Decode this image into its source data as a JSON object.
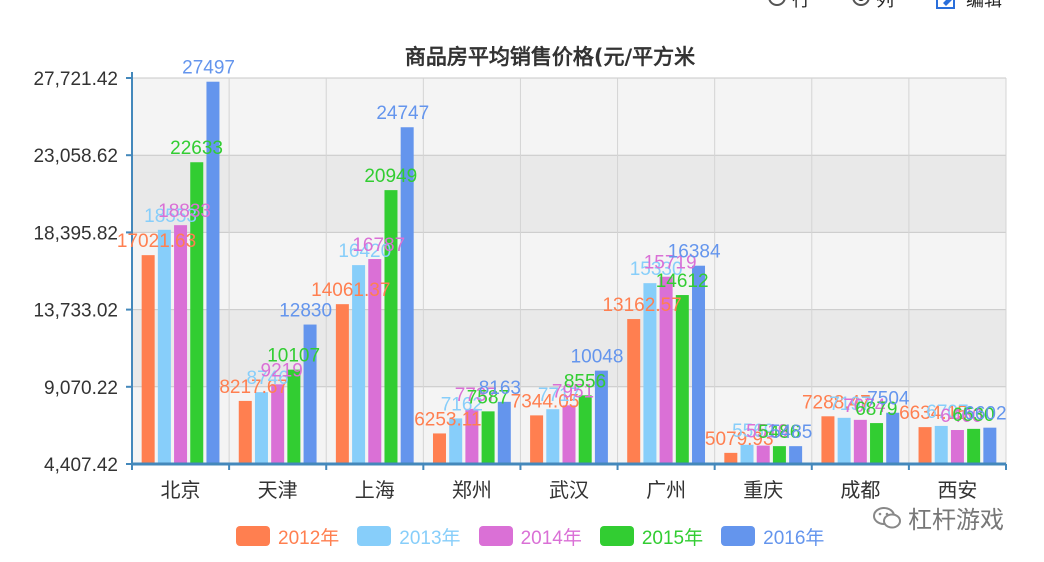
{
  "toolbar": {
    "row_label": "行",
    "col_label": "列",
    "edit_label": "编辑",
    "selected": "列"
  },
  "watermark": {
    "text": "杠杆游戏"
  },
  "chart_data": {
    "type": "bar",
    "title": "商品房平均销售价格(元/平方米",
    "categories": [
      "北京",
      "天津",
      "上海",
      "郑州",
      "武汉",
      "广州",
      "重庆",
      "成都",
      "西安"
    ],
    "yticks": [
      "4,407.42",
      "9,070.22",
      "13,733.02",
      "18,395.82",
      "23,058.62",
      "27,721.42"
    ],
    "ylim": [
      4407.42,
      27721.42
    ],
    "grid": true,
    "legend_position": "bottom",
    "series": [
      {
        "name": "2012年",
        "color": "#ff7f50",
        "values": [
          17021.63,
          8217.67,
          14061.37,
          6253.11,
          7344.05,
          13162.57,
          5079.93,
          7288.47,
          6634.15
        ],
        "labels": [
          "17021.63",
          "8217.67",
          "14061.37",
          "6253.11",
          "7344.05",
          "13162.57",
          "5079.93",
          "7288.47",
          "6634.15"
        ]
      },
      {
        "name": "2013年",
        "color": "#87cefa",
        "values": [
          18553,
          8746,
          16420,
          7162,
          7717,
          15330,
          5569,
          7197,
          6707
        ],
        "labels": [
          "18553",
          "8746",
          "16420",
          "7162",
          "7717",
          "15330",
          "5569",
          "7197",
          "6707"
        ]
      },
      {
        "name": "2014年",
        "color": "#da70d6",
        "values": [
          18833,
          9219,
          16787,
          7737,
          7951,
          15719,
          5519,
          7074,
          6460
        ],
        "labels": [
          "18833",
          "9219",
          "16787",
          "7737",
          "7951",
          "15719",
          "5519",
          "7074",
          "6460"
        ]
      },
      {
        "name": "2015年",
        "color": "#32cd32",
        "values": [
          22633,
          10107,
          20949,
          7587,
          8556,
          14612,
          5486,
          6879,
          6530
        ],
        "labels": [
          "22633",
          "10107",
          "20949",
          "7587",
          "8556",
          "14612",
          "5486",
          "6879",
          "6530"
        ]
      },
      {
        "name": "2016年",
        "color": "#6495ed",
        "values": [
          27497,
          12830,
          24747,
          8163,
          10048,
          16384,
          5485,
          7504,
          6602
        ],
        "labels": [
          "27497",
          "12830",
          "24747",
          "8163",
          "10048",
          "16384",
          "5485",
          "7504",
          "6602"
        ]
      }
    ]
  }
}
